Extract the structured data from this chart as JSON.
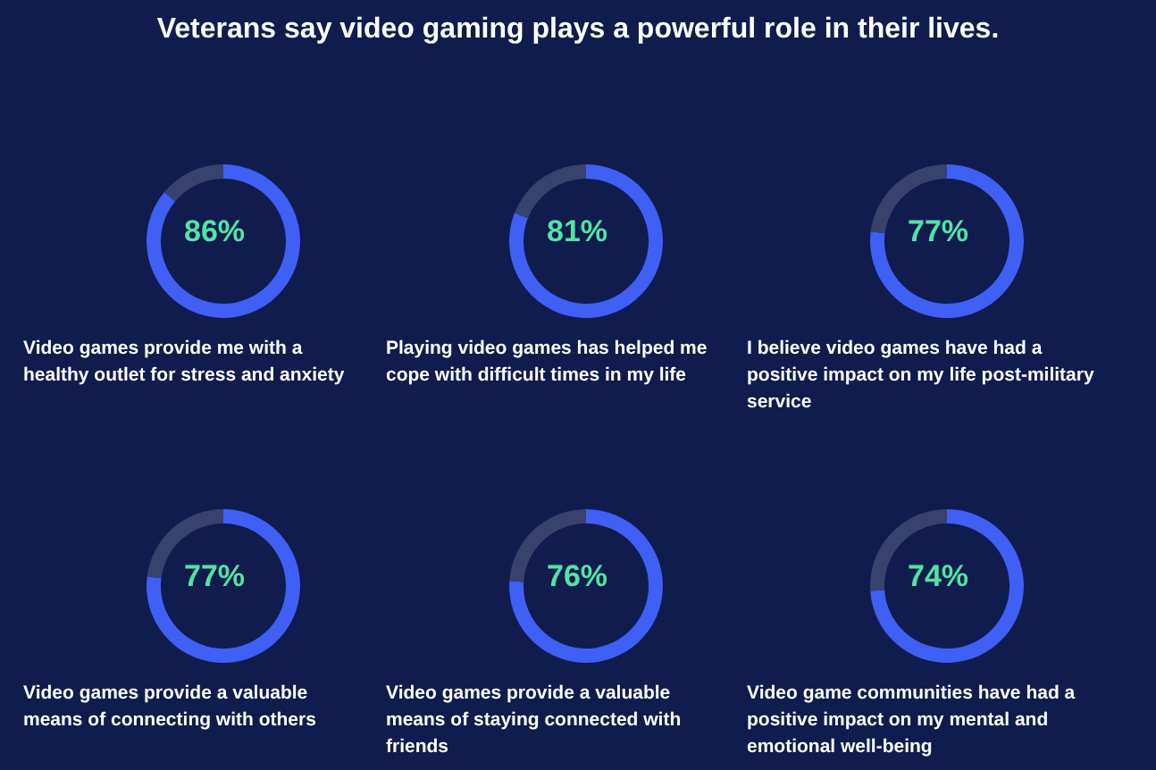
{
  "chart_data": [
    {
      "type": "other",
      "title": "Veterans say video gaming plays a powerful role in their lives."
    },
    {
      "type": "donut",
      "title": "Video games provide me with a healthy outlet for stress and anxiety",
      "categories": [
        null,
        null
      ],
      "values": [
        86,
        14
      ],
      "colors": [
        "#3f5ff5",
        "#39426e"
      ],
      "annotations": [
        "86%"
      ]
    },
    {
      "type": "donut",
      "title": "Playing video games has helped me cope with difficult times in my life",
      "categories": [
        null,
        null
      ],
      "values": [
        81,
        19
      ],
      "colors": [
        "#3f5ff5",
        "#39426e"
      ],
      "annotations": [
        "81%"
      ]
    },
    {
      "type": "donut",
      "title": "I believe video games have had a positive impact on my life post-military service",
      "categories": [
        null,
        null
      ],
      "values": [
        77,
        23
      ],
      "colors": [
        "#3f5ff5",
        "#39426e"
      ],
      "annotations": [
        "77%"
      ]
    },
    {
      "type": "donut",
      "title": "Video games provide a valuable means of connecting with others",
      "categories": [
        null,
        null
      ],
      "values": [
        77,
        23
      ],
      "colors": [
        "#3f5ff5",
        "#39426e"
      ],
      "annotations": [
        "77%"
      ]
    },
    {
      "type": "donut",
      "title": "Video games provide a valuable means of staying connected with friends",
      "categories": [
        null,
        null
      ],
      "values": [
        76,
        24
      ],
      "colors": [
        "#3f5ff5",
        "#39426e"
      ],
      "annotations": [
        "76%"
      ]
    },
    {
      "type": "donut",
      "title": "Video game communities have had a positive impact on my mental and emotional well-being",
      "categories": [
        null,
        null
      ],
      "values": [
        74,
        26
      ],
      "colors": [
        "#3f5ff5",
        "#39426e"
      ],
      "annotations": [
        "74%"
      ]
    }
  ]
}
